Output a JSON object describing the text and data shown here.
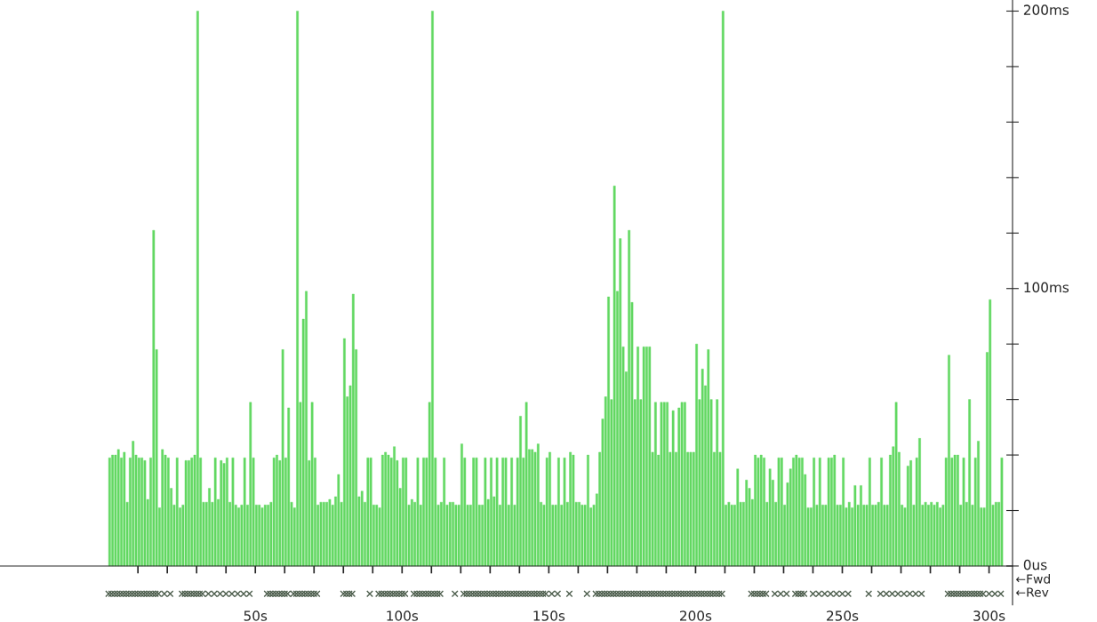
{
  "chart_data": {
    "type": "bar",
    "series": [
      {
        "color": "#62d862",
        "x": [
          0,
          1,
          2,
          3,
          4,
          5,
          6,
          7,
          8,
          9,
          10,
          11,
          12,
          13,
          14,
          15,
          16,
          17,
          18,
          19,
          20,
          21,
          22,
          23,
          24,
          25,
          26,
          27,
          28,
          29,
          30,
          31,
          32,
          33,
          34,
          35,
          36,
          37,
          38,
          39,
          40,
          41,
          42,
          43,
          44,
          45,
          46,
          47,
          48,
          49,
          50,
          51,
          52,
          53,
          54,
          55,
          56,
          57,
          58,
          59,
          60,
          61,
          62,
          63,
          64,
          65,
          66,
          67,
          68,
          69,
          70,
          71,
          72,
          73,
          74,
          75,
          76,
          77,
          78,
          79,
          80,
          81,
          82,
          83,
          84,
          85,
          86,
          87,
          88,
          89,
          90,
          91,
          92,
          93,
          94,
          95,
          96,
          97,
          98,
          99,
          100,
          101,
          102,
          103,
          104,
          105,
          106,
          107,
          108,
          109,
          110,
          111,
          112,
          113,
          114,
          115,
          116,
          117,
          118,
          119,
          120,
          121,
          122,
          123,
          124,
          125,
          126,
          127,
          128,
          129,
          130,
          131,
          132,
          133,
          134,
          135,
          136,
          137,
          138,
          139,
          140,
          141,
          142,
          143,
          144,
          145,
          146,
          147,
          148,
          149,
          150,
          151,
          152,
          153,
          154,
          155,
          156,
          157,
          158,
          159,
          160,
          161,
          162,
          163,
          164,
          165,
          166,
          167,
          168,
          169,
          170,
          171,
          172,
          173,
          174,
          175,
          176,
          177,
          178,
          179,
          180,
          181,
          182,
          183,
          184,
          185,
          186,
          187,
          188,
          189,
          190,
          191,
          192,
          193,
          194,
          195,
          196,
          197,
          198,
          199,
          200,
          201,
          202,
          203,
          204,
          205,
          206,
          207,
          208,
          209,
          210,
          211,
          212,
          213,
          214,
          215,
          216,
          217,
          218,
          219,
          220,
          221,
          222,
          223,
          224,
          225,
          226,
          227,
          228,
          229,
          230,
          231,
          232,
          233,
          234,
          235,
          236,
          237,
          238,
          239,
          240,
          241,
          242,
          243,
          244,
          245,
          246,
          247,
          248,
          249,
          250,
          251,
          252,
          253,
          254,
          255,
          256,
          257,
          258,
          259,
          260,
          261,
          262,
          263,
          264,
          265,
          266,
          267,
          268,
          269,
          270,
          271,
          272,
          273,
          274,
          275,
          276,
          277,
          278,
          279,
          280,
          281,
          282,
          283,
          284,
          285,
          286,
          287,
          288,
          289,
          290,
          291,
          292,
          293,
          294,
          295,
          296,
          297,
          298,
          299,
          300,
          301,
          302,
          303,
          304
        ],
        "values": [
          39,
          40,
          40,
          42,
          39,
          41,
          23,
          39,
          45,
          40,
          39,
          39,
          38,
          24,
          39,
          121,
          78,
          21,
          42,
          40,
          39,
          28,
          22,
          39,
          21,
          22,
          38,
          38,
          39,
          40,
          200,
          39,
          23,
          23,
          28,
          23,
          39,
          24,
          38,
          37,
          39,
          23,
          39,
          22,
          21,
          22,
          39,
          22,
          59,
          39,
          22,
          22,
          21,
          22,
          22,
          23,
          39,
          40,
          38,
          78,
          39,
          57,
          23,
          21,
          200,
          59,
          89,
          99,
          38,
          59,
          39,
          22,
          23,
          23,
          23,
          24,
          22,
          25,
          33,
          23,
          82,
          61,
          65,
          98,
          78,
          25,
          27,
          23,
          39,
          39,
          22,
          22,
          21,
          40,
          41,
          40,
          39,
          43,
          38,
          28,
          39,
          39,
          22,
          24,
          23,
          39,
          22,
          39,
          39,
          59,
          200,
          39,
          22,
          23,
          39,
          22,
          23,
          23,
          22,
          22,
          44,
          39,
          22,
          22,
          39,
          39,
          22,
          22,
          39,
          24,
          39,
          25,
          39,
          22,
          39,
          39,
          22,
          39,
          22,
          39,
          54,
          39,
          59,
          42,
          42,
          41,
          44,
          23,
          22,
          39,
          41,
          22,
          22,
          39,
          22,
          39,
          23,
          41,
          40,
          23,
          23,
          22,
          22,
          40,
          21,
          22,
          26,
          41,
          53,
          61,
          97,
          60,
          137,
          99,
          118,
          79,
          70,
          121,
          95,
          60,
          79,
          60,
          79,
          79,
          79,
          41,
          59,
          40,
          59,
          59,
          59,
          41,
          56,
          41,
          57,
          59,
          59,
          41,
          41,
          41,
          80,
          60,
          71,
          65,
          78,
          60,
          41,
          60,
          41,
          200,
          22,
          23,
          22,
          22,
          35,
          23,
          23,
          31,
          28,
          24,
          40,
          39,
          40,
          39,
          23,
          35,
          31,
          23,
          39,
          39,
          22,
          30,
          35,
          39,
          40,
          39,
          39,
          33,
          21,
          21,
          39,
          22,
          39,
          22,
          22,
          39,
          39,
          40,
          22,
          22,
          39,
          21,
          23,
          21,
          29,
          22,
          29,
          22,
          22,
          39,
          22,
          22,
          23,
          39,
          22,
          22,
          40,
          43,
          59,
          41,
          22,
          21,
          36,
          38,
          22,
          39,
          46,
          22,
          23,
          22,
          23,
          22,
          23,
          21,
          22,
          39,
          76,
          39,
          40,
          40,
          22,
          39,
          23,
          60,
          22,
          39,
          45,
          21,
          21,
          77,
          96,
          22,
          23,
          23,
          39
        ]
      },
      {
        "type": "scatter",
        "marker": "cross",
        "color": "#4d5e4d",
        "x": [
          0,
          1,
          2,
          3,
          4,
          5,
          6,
          7,
          8,
          9,
          10,
          11,
          12,
          13,
          14,
          15,
          16,
          17,
          19,
          21,
          25,
          26,
          27,
          28,
          29,
          30,
          31,
          32,
          34,
          36,
          38,
          40,
          42,
          44,
          46,
          48,
          54,
          55,
          56,
          57,
          58,
          59,
          60,
          61,
          63,
          64,
          65,
          66,
          67,
          68,
          69,
          70,
          71,
          80,
          81,
          82,
          83,
          89,
          92,
          93,
          94,
          95,
          96,
          97,
          98,
          99,
          100,
          101,
          104,
          105,
          106,
          107,
          108,
          109,
          110,
          111,
          112,
          113,
          118,
          121,
          122,
          123,
          124,
          125,
          126,
          127,
          128,
          129,
          130,
          131,
          132,
          133,
          134,
          135,
          136,
          137,
          138,
          139,
          140,
          141,
          142,
          143,
          144,
          145,
          146,
          147,
          148,
          149,
          151,
          153,
          157,
          163,
          166,
          167,
          168,
          169,
          170,
          171,
          172,
          173,
          174,
          175,
          176,
          177,
          178,
          179,
          180,
          181,
          182,
          183,
          184,
          185,
          186,
          187,
          188,
          189,
          190,
          191,
          192,
          193,
          194,
          195,
          196,
          197,
          198,
          199,
          200,
          201,
          202,
          203,
          204,
          205,
          206,
          207,
          208,
          209,
          219,
          220,
          221,
          222,
          223,
          224,
          227,
          229,
          231,
          234,
          235,
          236,
          237,
          240,
          242,
          244,
          246,
          248,
          250,
          252,
          259,
          263,
          265,
          267,
          269,
          271,
          273,
          275,
          277,
          286,
          287,
          288,
          289,
          290,
          291,
          292,
          293,
          294,
          295,
          296,
          297,
          298,
          300,
          302,
          304
        ],
        "values": [
          -10,
          -10,
          -10,
          -10,
          -10,
          -10,
          -10,
          -10,
          -10,
          -10,
          -10,
          -10,
          -10,
          -10,
          -10,
          -10,
          -10,
          -10,
          -10,
          -10,
          -10,
          -10,
          -10,
          -10,
          -10,
          -10,
          -10,
          -10,
          -10,
          -10,
          -10,
          -10,
          -10,
          -10,
          -10,
          -10,
          -10,
          -10,
          -10,
          -10,
          -10,
          -10,
          -10,
          -10,
          -10,
          -10,
          -10,
          -10,
          -10,
          -10,
          -10,
          -10,
          -10,
          -10,
          -10,
          -10,
          -10,
          -10,
          -10,
          -10,
          -10,
          -10,
          -10,
          -10,
          -10,
          -10,
          -10,
          -10,
          -10,
          -10,
          -10,
          -10,
          -10,
          -10,
          -10,
          -10,
          -10,
          -10,
          -10,
          -10,
          -10,
          -10,
          -10,
          -10,
          -10,
          -10,
          -10,
          -10,
          -10,
          -10,
          -10,
          -10,
          -10,
          -10,
          -10,
          -10,
          -10,
          -10,
          -10,
          -10,
          -10,
          -10,
          -10,
          -10,
          -10,
          -10,
          -10,
          -10,
          -10,
          -10,
          -10,
          -10,
          -10,
          -10,
          -10,
          -10,
          -10,
          -10,
          -10,
          -10,
          -10,
          -10,
          -10,
          -10,
          -10,
          -10,
          -10,
          -10,
          -10,
          -10,
          -10,
          -10,
          -10,
          -10,
          -10,
          -10,
          -10,
          -10,
          -10,
          -10,
          -10,
          -10,
          -10,
          -10,
          -10,
          -10,
          -10,
          -10,
          -10,
          -10,
          -10,
          -10,
          -10,
          -10,
          -10,
          -10,
          -10,
          -10,
          -10,
          -10,
          -10,
          -10,
          -10,
          -10,
          -10,
          -10,
          -10,
          -10,
          -10,
          -10,
          -10,
          -10,
          -10,
          -10,
          -10,
          -10,
          -10,
          -10,
          -10,
          -10,
          -10,
          -10,
          -10,
          -10,
          -10,
          -10,
          -10,
          -10,
          -10,
          -10,
          -10,
          -10,
          -10,
          -10,
          -10,
          -10,
          -10,
          -10,
          -10,
          -10,
          -10
        ]
      }
    ],
    "xlim": [
      -37,
      308
    ],
    "ylim": [
      -14,
      204
    ],
    "xticks": [
      {
        "value": 10,
        "label": null
      },
      {
        "value": 20,
        "label": null
      },
      {
        "value": 30,
        "label": null
      },
      {
        "value": 40,
        "label": null
      },
      {
        "value": 50,
        "label": "50s"
      },
      {
        "value": 60,
        "label": null
      },
      {
        "value": 70,
        "label": null
      },
      {
        "value": 80,
        "label": null
      },
      {
        "value": 90,
        "label": null
      },
      {
        "value": 100,
        "label": "100s"
      },
      {
        "value": 110,
        "label": null
      },
      {
        "value": 120,
        "label": null
      },
      {
        "value": 130,
        "label": null
      },
      {
        "value": 140,
        "label": null
      },
      {
        "value": 150,
        "label": "150s"
      },
      {
        "value": 160,
        "label": null
      },
      {
        "value": 170,
        "label": null
      },
      {
        "value": 180,
        "label": null
      },
      {
        "value": 190,
        "label": null
      },
      {
        "value": 200,
        "label": "200s"
      },
      {
        "value": 210,
        "label": null
      },
      {
        "value": 220,
        "label": null
      },
      {
        "value": 230,
        "label": null
      },
      {
        "value": 240,
        "label": null
      },
      {
        "value": 250,
        "label": "250s"
      },
      {
        "value": 260,
        "label": null
      },
      {
        "value": 270,
        "label": null
      },
      {
        "value": 280,
        "label": null
      },
      {
        "value": 290,
        "label": null
      },
      {
        "value": 300,
        "label": "300s"
      }
    ],
    "yticks": [
      {
        "value": 0,
        "label": "0us"
      },
      {
        "value": 20,
        "label": null
      },
      {
        "value": 40,
        "label": null
      },
      {
        "value": 60,
        "label": null
      },
      {
        "value": 80,
        "label": null
      },
      {
        "value": 100,
        "label": "100ms"
      },
      {
        "value": 120,
        "label": null
      },
      {
        "value": 140,
        "label": null
      },
      {
        "value": 160,
        "label": null
      },
      {
        "value": 180,
        "label": null
      },
      {
        "value": 200,
        "label": "200ms"
      }
    ],
    "annotations": [
      "←Fwd",
      "←Rev"
    ]
  }
}
